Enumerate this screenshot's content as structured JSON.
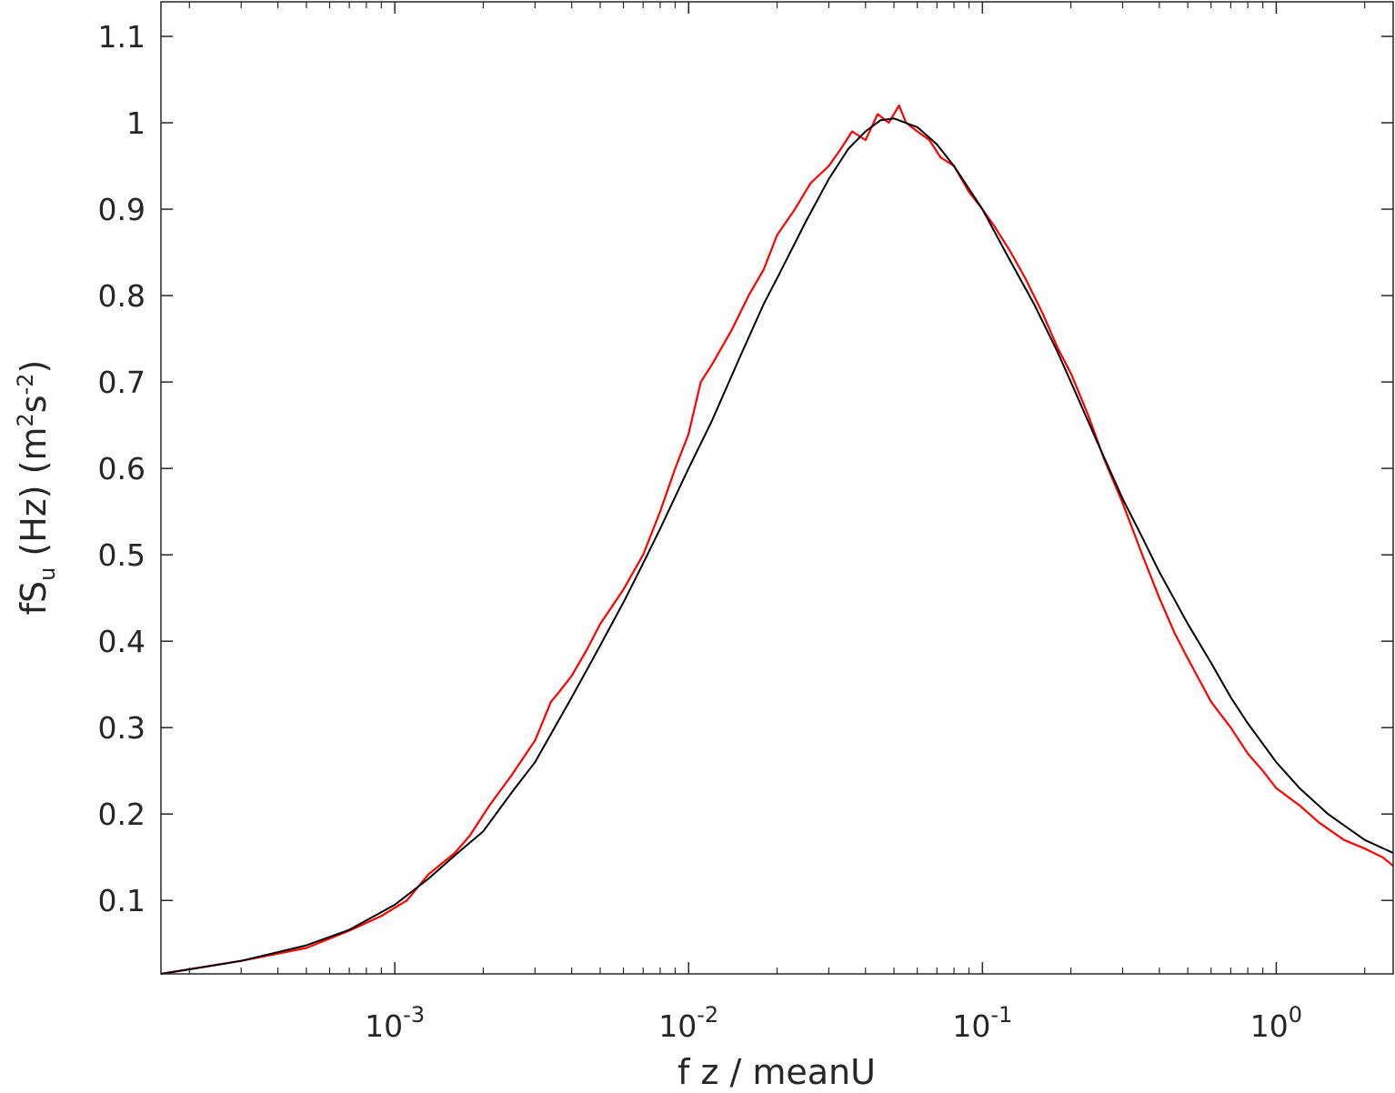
{
  "chart_data": {
    "type": "line",
    "xscale": "log",
    "xlim": [
      0.00016,
      2.5
    ],
    "ylim": [
      0.015,
      1.14
    ],
    "xlabel": "f z / meanU",
    "ylabel": {
      "main": "fS",
      "sub": "u",
      "mid": " (Hz) (m",
      "sup1": "2",
      "s": "s",
      "sup2": "-2",
      "end": ")"
    },
    "xticks": [
      {
        "value": 0.001,
        "base": "10",
        "exp": "-3"
      },
      {
        "value": 0.01,
        "base": "10",
        "exp": "-2"
      },
      {
        "value": 0.1,
        "base": "10",
        "exp": "-1"
      },
      {
        "value": 1,
        "base": "10",
        "exp": "0"
      }
    ],
    "yticks": [
      {
        "value": 0.1,
        "label": "0.1"
      },
      {
        "value": 0.2,
        "label": "0.2"
      },
      {
        "value": 0.3,
        "label": "0.3"
      },
      {
        "value": 0.4,
        "label": "0.4"
      },
      {
        "value": 0.5,
        "label": "0.5"
      },
      {
        "value": 0.6,
        "label": "0.6"
      },
      {
        "value": 0.7,
        "label": "0.7"
      },
      {
        "value": 0.8,
        "label": "0.8"
      },
      {
        "value": 0.9,
        "label": "0.9"
      },
      {
        "value": 1,
        "label": "1"
      },
      {
        "value": 1.1,
        "label": "1.1"
      }
    ],
    "grid": false,
    "legend": "none",
    "series": [
      {
        "role": "measured",
        "color": "#ff0000",
        "x": [
          0.00016,
          0.0003,
          0.0005,
          0.0007,
          0.0009,
          0.0011,
          0.0013,
          0.0016,
          0.0018,
          0.0021,
          0.0025,
          0.003,
          0.0034,
          0.0036,
          0.004,
          0.0045,
          0.005,
          0.006,
          0.007,
          0.008,
          0.009,
          0.01,
          0.011,
          0.012,
          0.014,
          0.016,
          0.018,
          0.02,
          0.023,
          0.026,
          0.03,
          0.033,
          0.036,
          0.04,
          0.044,
          0.048,
          0.052,
          0.055,
          0.06,
          0.066,
          0.072,
          0.08,
          0.09,
          0.1,
          0.11,
          0.125,
          0.14,
          0.16,
          0.18,
          0.2,
          0.23,
          0.26,
          0.3,
          0.35,
          0.4,
          0.45,
          0.5,
          0.6,
          0.7,
          0.8,
          0.9,
          1.0,
          1.2,
          1.4,
          1.7,
          2.0,
          2.3,
          2.5
        ],
        "y": [
          0.015,
          0.03,
          0.045,
          0.065,
          0.082,
          0.1,
          0.13,
          0.155,
          0.175,
          0.21,
          0.245,
          0.285,
          0.33,
          0.34,
          0.36,
          0.39,
          0.42,
          0.46,
          0.5,
          0.55,
          0.6,
          0.64,
          0.7,
          0.72,
          0.76,
          0.8,
          0.83,
          0.87,
          0.9,
          0.93,
          0.95,
          0.97,
          0.99,
          0.98,
          1.01,
          1.0,
          1.02,
          1.0,
          0.99,
          0.98,
          0.96,
          0.95,
          0.92,
          0.9,
          0.88,
          0.85,
          0.82,
          0.78,
          0.74,
          0.71,
          0.66,
          0.61,
          0.56,
          0.5,
          0.45,
          0.41,
          0.38,
          0.33,
          0.3,
          0.27,
          0.25,
          0.23,
          0.21,
          0.19,
          0.17,
          0.16,
          0.15,
          0.14
        ]
      },
      {
        "role": "model",
        "color": "#000000",
        "x": [
          0.00016,
          0.0003,
          0.0005,
          0.0007,
          0.001,
          0.0013,
          0.0016,
          0.002,
          0.0025,
          0.003,
          0.004,
          0.005,
          0.006,
          0.007,
          0.008,
          0.01,
          0.012,
          0.015,
          0.018,
          0.02,
          0.025,
          0.03,
          0.035,
          0.04,
          0.045,
          0.05,
          0.06,
          0.07,
          0.08,
          0.1,
          0.12,
          0.15,
          0.18,
          0.2,
          0.25,
          0.3,
          0.35,
          0.4,
          0.5,
          0.6,
          0.7,
          0.8,
          1.0,
          1.2,
          1.5,
          2.0,
          2.5
        ],
        "y": [
          0.015,
          0.03,
          0.048,
          0.066,
          0.095,
          0.125,
          0.152,
          0.18,
          0.225,
          0.26,
          0.335,
          0.395,
          0.445,
          0.49,
          0.53,
          0.6,
          0.655,
          0.73,
          0.79,
          0.82,
          0.885,
          0.935,
          0.97,
          0.99,
          1.003,
          1.005,
          0.995,
          0.975,
          0.95,
          0.9,
          0.85,
          0.79,
          0.735,
          0.7,
          0.625,
          0.565,
          0.52,
          0.48,
          0.42,
          0.375,
          0.335,
          0.305,
          0.26,
          0.23,
          0.2,
          0.17,
          0.155
        ]
      }
    ]
  }
}
